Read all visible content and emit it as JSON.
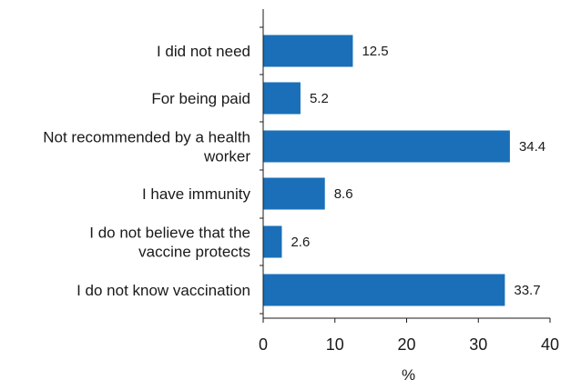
{
  "chart_data": {
    "type": "bar",
    "orientation": "horizontal",
    "categories": [
      [
        "I did not need"
      ],
      [
        "For being paid"
      ],
      [
        "Not recommended by a health",
        "worker"
      ],
      [
        "I have immunity"
      ],
      [
        "I do not believe that the",
        "vaccine protects"
      ],
      [
        "I do not know vaccination"
      ]
    ],
    "values": [
      12.5,
      5.2,
      34.4,
      8.6,
      2.6,
      33.7
    ],
    "value_labels": [
      "12.5",
      "5.2",
      "34.4",
      "8.6",
      "2.6",
      "33.7"
    ],
    "xlabel": "%",
    "xlim": [
      0,
      40
    ],
    "xticks": [
      "0",
      "10",
      "20",
      "30",
      "40"
    ],
    "grid": false,
    "bar_color": "#1a6fb8"
  }
}
